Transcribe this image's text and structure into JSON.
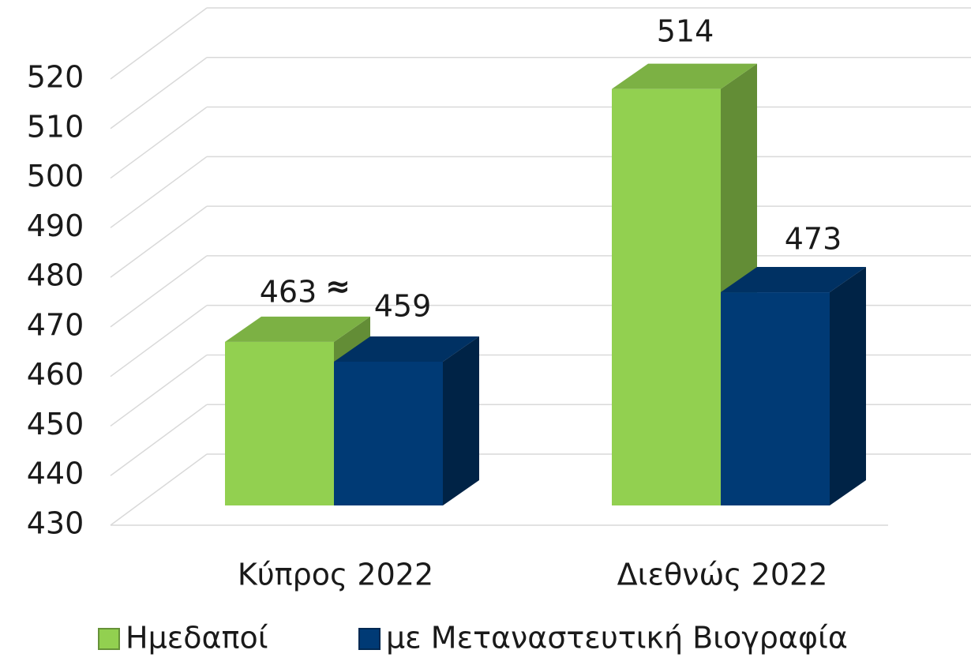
{
  "chart_data": {
    "type": "bar3d",
    "categories": [
      "Κύπρος 2022",
      "Διεθνώς 2022"
    ],
    "series": [
      {
        "name": "Ημεδαποί",
        "color": "#92d050",
        "values": [
          463,
          514
        ]
      },
      {
        "name": "με Μεταναστευτική Βιογραφία",
        "color": "#003a75",
        "values": [
          459,
          473
        ]
      }
    ],
    "annotations": [
      "≈"
    ],
    "ylim": [
      430,
      520
    ],
    "yticks": [
      430,
      440,
      450,
      460,
      470,
      480,
      490,
      500,
      510,
      520
    ],
    "grid": true,
    "legend": "bottom"
  }
}
